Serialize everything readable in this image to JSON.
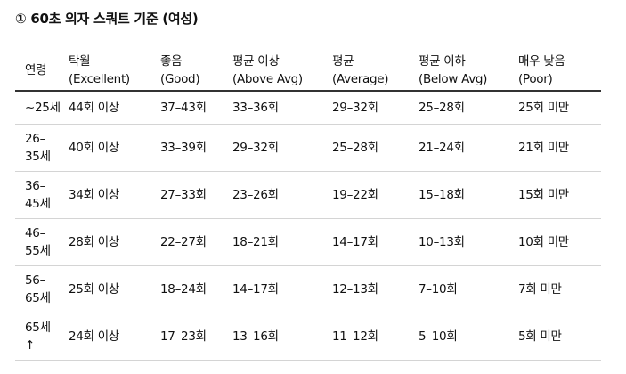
{
  "title": "① 60초 의자 스쿼트 기준 (여성)",
  "table": {
    "headers": [
      {
        "line1": "연령",
        "line2": ""
      },
      {
        "line1": "탁월",
        "line2": "(Excellent)"
      },
      {
        "line1": "좋음",
        "line2": "(Good)"
      },
      {
        "line1": "평균 이상",
        "line2": "(Above Avg)"
      },
      {
        "line1": "평균",
        "line2": "(Average)"
      },
      {
        "line1": "평균 이하",
        "line2": "(Below Avg)"
      },
      {
        "line1": "매우 낮음",
        "line2": "(Poor)"
      }
    ],
    "rows": [
      {
        "age1": "~25세",
        "age2": "",
        "cells": [
          "44회 이상",
          "37–43회",
          "33–36회",
          "29–32회",
          "25–28회",
          "25회 미만"
        ]
      },
      {
        "age1": "26–",
        "age2": "35세",
        "cells": [
          "40회 이상",
          "33–39회",
          "29–32회",
          "25–28회",
          "21–24회",
          "21회 미만"
        ]
      },
      {
        "age1": "36–",
        "age2": "45세",
        "cells": [
          "34회 이상",
          "27–33회",
          "23–26회",
          "19–22회",
          "15–18회",
          "15회 미만"
        ]
      },
      {
        "age1": "46–",
        "age2": "55세",
        "cells": [
          "28회 이상",
          "22–27회",
          "18–21회",
          "14–17회",
          "10–13회",
          "10회 미만"
        ]
      },
      {
        "age1": "56–",
        "age2": "65세",
        "cells": [
          "25회 이상",
          "18–24회",
          "14–17회",
          "12–13회",
          "7–10회",
          "7회 미만"
        ]
      },
      {
        "age1": "65세",
        "age2": "↑",
        "cells": [
          "24회 이상",
          "17–23회",
          "13–16회",
          "11–12회",
          "5–10회",
          "5회 미만"
        ]
      }
    ]
  }
}
